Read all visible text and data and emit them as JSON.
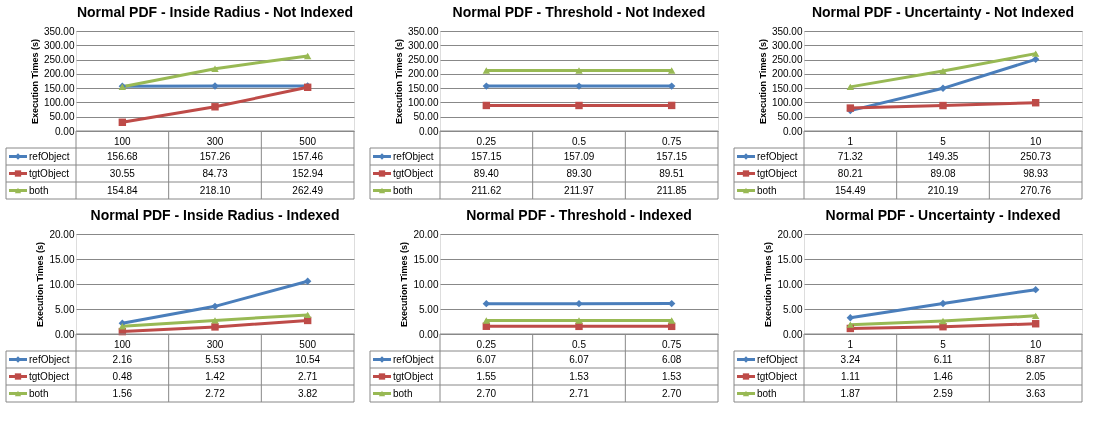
{
  "chart_data": [
    {
      "type": "line",
      "title": "Normal PDF - Inside Radius - Not Indexed",
      "ylabel": "Execution Times (s)",
      "categories": [
        "100",
        "300",
        "500"
      ],
      "series": [
        {
          "name": "refObject",
          "color": "#4a7ebb",
          "marker": "diamond",
          "values": [
            156.68,
            157.26,
            157.46
          ],
          "value_labels": [
            "156.68",
            "157.26",
            "157.46"
          ]
        },
        {
          "name": "tgtObject",
          "color": "#be4b48",
          "marker": "square",
          "values": [
            30.55,
            84.73,
            152.94
          ],
          "value_labels": [
            "30.55",
            "84.73",
            "152.94"
          ]
        },
        {
          "name": "both",
          "color": "#98b954",
          "marker": "triangle",
          "values": [
            154.84,
            218.1,
            262.49
          ],
          "value_labels": [
            "154.84",
            "218.10",
            "262.49"
          ]
        }
      ],
      "ylim": [
        0,
        350
      ],
      "yticks": [
        {
          "value": 0,
          "label": "0.00"
        },
        {
          "value": 50,
          "label": "50.00"
        },
        {
          "value": 100,
          "label": "100.00"
        },
        {
          "value": 150,
          "label": "150.00"
        },
        {
          "value": 200,
          "label": "200.00"
        },
        {
          "value": 250,
          "label": "250.00"
        },
        {
          "value": 300,
          "label": "300.00"
        },
        {
          "value": 350,
          "label": "350.00"
        }
      ],
      "grid": "y",
      "legend": "bottom"
    },
    {
      "type": "line",
      "title": "Normal PDF - Threshold - Not Indexed",
      "ylabel": "Execution Times (s)",
      "categories": [
        "0.25",
        "0.5",
        "0.75"
      ],
      "series": [
        {
          "name": "refObject",
          "color": "#4a7ebb",
          "marker": "diamond",
          "values": [
            157.15,
            157.09,
            157.15
          ],
          "value_labels": [
            "157.15",
            "157.09",
            "157.15"
          ]
        },
        {
          "name": "tgtObject",
          "color": "#be4b48",
          "marker": "square",
          "values": [
            89.4,
            89.3,
            89.51
          ],
          "value_labels": [
            "89.40",
            "89.30",
            "89.51"
          ]
        },
        {
          "name": "both",
          "color": "#98b954",
          "marker": "triangle",
          "values": [
            211.62,
            211.97,
            211.85
          ],
          "value_labels": [
            "211.62",
            "211.97",
            "211.85"
          ]
        }
      ],
      "ylim": [
        0,
        350
      ],
      "yticks": [
        {
          "value": 0,
          "label": "0.00"
        },
        {
          "value": 50,
          "label": "50.00"
        },
        {
          "value": 100,
          "label": "100.00"
        },
        {
          "value": 150,
          "label": "150.00"
        },
        {
          "value": 200,
          "label": "200.00"
        },
        {
          "value": 250,
          "label": "250.00"
        },
        {
          "value": 300,
          "label": "300.00"
        },
        {
          "value": 350,
          "label": "350.00"
        }
      ],
      "grid": "y",
      "legend": "bottom"
    },
    {
      "type": "line",
      "title": "Normal PDF - Uncertainty - Not Indexed",
      "ylabel": "Execution Times (s)",
      "categories": [
        "1",
        "5",
        "10"
      ],
      "series": [
        {
          "name": "refObject",
          "color": "#4a7ebb",
          "marker": "diamond",
          "values": [
            71.32,
            149.35,
            250.73
          ],
          "value_labels": [
            "71.32",
            "149.35",
            "250.73"
          ]
        },
        {
          "name": "tgtObject",
          "color": "#be4b48",
          "marker": "square",
          "values": [
            80.21,
            89.08,
            98.93
          ],
          "value_labels": [
            "80.21",
            "89.08",
            "98.93"
          ]
        },
        {
          "name": "both",
          "color": "#98b954",
          "marker": "triangle",
          "values": [
            154.49,
            210.19,
            270.76
          ],
          "value_labels": [
            "154.49",
            "210.19",
            "270.76"
          ]
        }
      ],
      "ylim": [
        0,
        350
      ],
      "yticks": [
        {
          "value": 0,
          "label": "0.00"
        },
        {
          "value": 50,
          "label": "50.00"
        },
        {
          "value": 100,
          "label": "100.00"
        },
        {
          "value": 150,
          "label": "150.00"
        },
        {
          "value": 200,
          "label": "200.00"
        },
        {
          "value": 250,
          "label": "250.00"
        },
        {
          "value": 300,
          "label": "300.00"
        },
        {
          "value": 350,
          "label": "350.00"
        }
      ],
      "grid": "y",
      "legend": "bottom"
    },
    {
      "type": "line",
      "title": "Normal PDF - Inside Radius - Indexed",
      "ylabel": "Execution Times (s)",
      "categories": [
        "100",
        "300",
        "500"
      ],
      "series": [
        {
          "name": "refObject",
          "color": "#4a7ebb",
          "marker": "diamond",
          "values": [
            2.16,
            5.53,
            10.54
          ],
          "value_labels": [
            "2.16",
            "5.53",
            "10.54"
          ]
        },
        {
          "name": "tgtObject",
          "color": "#be4b48",
          "marker": "square",
          "values": [
            0.48,
            1.42,
            2.71
          ],
          "value_labels": [
            "0.48",
            "1.42",
            "2.71"
          ]
        },
        {
          "name": "both",
          "color": "#98b954",
          "marker": "triangle",
          "values": [
            1.56,
            2.72,
            3.82
          ],
          "value_labels": [
            "1.56",
            "2.72",
            "3.82"
          ]
        }
      ],
      "ylim": [
        0,
        20
      ],
      "yticks": [
        {
          "value": 0,
          "label": "0.00"
        },
        {
          "value": 5,
          "label": "5.00"
        },
        {
          "value": 10,
          "label": "10.00"
        },
        {
          "value": 15,
          "label": "15.00"
        },
        {
          "value": 20,
          "label": "20.00"
        }
      ],
      "grid": "y",
      "legend": "bottom"
    },
    {
      "type": "line",
      "title": "Normal PDF - Threshold - Indexed",
      "ylabel": "Execution Times (s)",
      "categories": [
        "0.25",
        "0.5",
        "0.75"
      ],
      "series": [
        {
          "name": "refObject",
          "color": "#4a7ebb",
          "marker": "diamond",
          "values": [
            6.07,
            6.07,
            6.08
          ],
          "value_labels": [
            "6.07",
            "6.07",
            "6.08"
          ]
        },
        {
          "name": "tgtObject",
          "color": "#be4b48",
          "marker": "square",
          "values": [
            1.55,
            1.53,
            1.53
          ],
          "value_labels": [
            "1.55",
            "1.53",
            "1.53"
          ]
        },
        {
          "name": "both",
          "color": "#98b954",
          "marker": "triangle",
          "values": [
            2.7,
            2.71,
            2.7
          ],
          "value_labels": [
            "2.70",
            "2.71",
            "2.70"
          ]
        }
      ],
      "ylim": [
        0,
        20
      ],
      "yticks": [
        {
          "value": 0,
          "label": "0.00"
        },
        {
          "value": 5,
          "label": "5.00"
        },
        {
          "value": 10,
          "label": "10.00"
        },
        {
          "value": 15,
          "label": "15.00"
        },
        {
          "value": 20,
          "label": "20.00"
        }
      ],
      "grid": "y",
      "legend": "bottom"
    },
    {
      "type": "line",
      "title": "Normal PDF - Uncertainty - Indexed",
      "ylabel": "Execution Times (s)",
      "categories": [
        "1",
        "5",
        "10"
      ],
      "series": [
        {
          "name": "refObject",
          "color": "#4a7ebb",
          "marker": "diamond",
          "values": [
            3.24,
            6.11,
            8.87
          ],
          "value_labels": [
            "3.24",
            "6.11",
            "8.87"
          ]
        },
        {
          "name": "tgtObject",
          "color": "#be4b48",
          "marker": "square",
          "values": [
            1.11,
            1.46,
            2.05
          ],
          "value_labels": [
            "1.11",
            "1.46",
            "2.05"
          ]
        },
        {
          "name": "both",
          "color": "#98b954",
          "marker": "triangle",
          "values": [
            1.87,
            2.59,
            3.63
          ],
          "value_labels": [
            "1.87",
            "2.59",
            "3.63"
          ]
        }
      ],
      "ylim": [
        0,
        20
      ],
      "yticks": [
        {
          "value": 0,
          "label": "0.00"
        },
        {
          "value": 5,
          "label": "5.00"
        },
        {
          "value": 10,
          "label": "10.00"
        },
        {
          "value": 15,
          "label": "15.00"
        },
        {
          "value": 20,
          "label": "20.00"
        }
      ],
      "grid": "y",
      "legend": "bottom"
    }
  ]
}
